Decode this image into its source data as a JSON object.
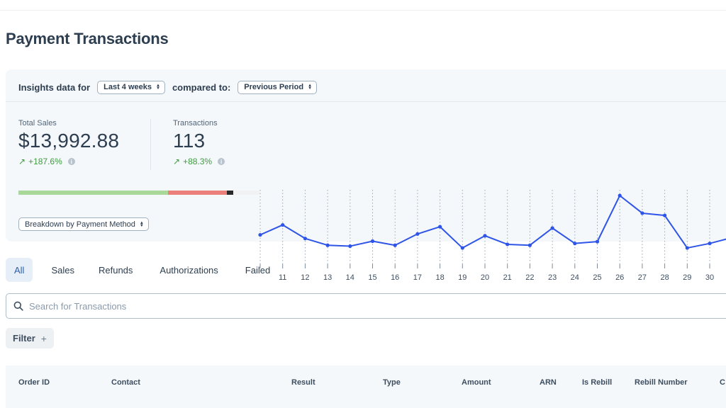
{
  "page_title": "Payment Transactions",
  "insights": {
    "label": "Insights data for",
    "range_select": "Last 4 weeks",
    "compared_label": "compared to:",
    "compare_select": "Previous Period"
  },
  "metrics": {
    "total_sales": {
      "label": "Total Sales",
      "value": "$13,992.88",
      "change": "+187.6%"
    },
    "transactions": {
      "label": "Transactions",
      "value": "113",
      "change": "+88.3%"
    }
  },
  "breakdown": {
    "select_label": "Breakdown by Payment Method",
    "segments": [
      {
        "name": "green",
        "fraction": 0.62,
        "color": "#a8d99a"
      },
      {
        "name": "red",
        "fraction": 0.245,
        "color": "#ec7f7a"
      },
      {
        "name": "black",
        "fraction": 0.025,
        "color": "#2a2a2a"
      }
    ]
  },
  "chart_data": {
    "type": "line",
    "x": [
      "10",
      "11",
      "12",
      "13",
      "14",
      "15",
      "16",
      "17",
      "18",
      "19",
      "20",
      "21",
      "22",
      "23",
      "24",
      "25",
      "26",
      "27",
      "28",
      "29",
      "30",
      "31"
    ],
    "x_labels": [
      "11",
      "12",
      "13",
      "14",
      "15",
      "16",
      "17",
      "18",
      "19",
      "20",
      "21",
      "22",
      "23",
      "24",
      "25",
      "26",
      "27",
      "28",
      "29",
      "30"
    ],
    "values": [
      6.5,
      8.7,
      5.7,
      4.2,
      4.0,
      5.1,
      4.2,
      6.7,
      8.3,
      3.6,
      6.3,
      4.4,
      4.2,
      8.0,
      4.6,
      5.0,
      15.2,
      11.3,
      10.8,
      3.6,
      4.6,
      5.9
    ],
    "color": "#2f55e8",
    "grid": true,
    "ylim": [
      0,
      16
    ]
  },
  "tabs": [
    "All",
    "Sales",
    "Refunds",
    "Authorizations",
    "Failed"
  ],
  "active_tab": "All",
  "search": {
    "placeholder": "Search for Transactions"
  },
  "filter": {
    "label": "Filter",
    "plus": "+"
  },
  "table": {
    "columns": [
      "Order ID",
      "Contact",
      "Result",
      "Type",
      "Amount",
      "ARN",
      "Is Rebill",
      "Rebill Number",
      "C"
    ]
  }
}
